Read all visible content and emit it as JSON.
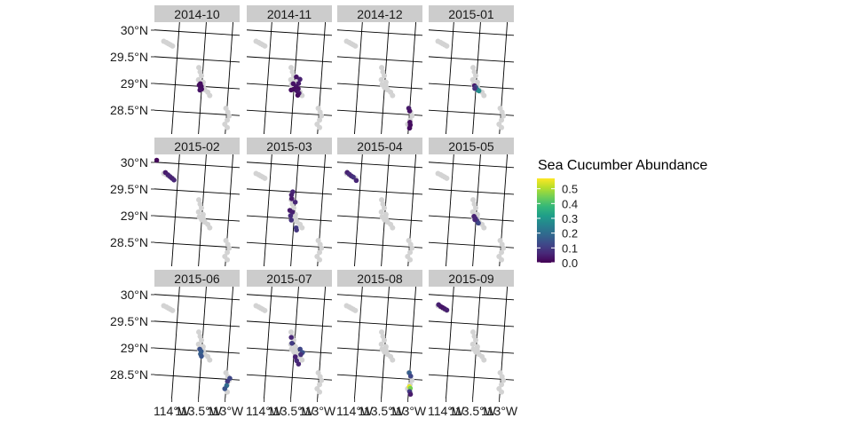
{
  "chart_data": {
    "type": "scatter",
    "subtype": "faceted map",
    "facets": [
      "2014-10",
      "2014-11",
      "2014-12",
      "2015-01",
      "2015-02",
      "2015-03",
      "2015-04",
      "2015-05",
      "2015-06",
      "2015-07",
      "2015-08",
      "2015-09"
    ],
    "facet_layout": {
      "rows": 3,
      "cols": 4
    },
    "y_axis": {
      "ticks": [
        30.0,
        29.5,
        29.0,
        28.5
      ],
      "tick_labels": [
        "30°N",
        "29.5°N",
        "29°N",
        "28.5°N"
      ],
      "range": [
        28.1,
        30.2
      ]
    },
    "x_axis": {
      "ticks": [
        -114.0,
        -113.5,
        -113.0
      ],
      "tick_labels": [
        "114°W",
        "113.5°W",
        "113°W"
      ],
      "range": [
        -114.4,
        -112.8
      ]
    },
    "legend": {
      "title": "Sea Cucumber Abundance",
      "ticks": [
        0.0,
        0.1,
        0.2,
        0.3,
        0.4,
        0.5
      ],
      "tick_labels": [
        "0.0",
        "0.1",
        "0.2",
        "0.3",
        "0.4",
        "0.5"
      ],
      "range": [
        0.0,
        0.57
      ],
      "colormap": "viridis",
      "position": "right"
    },
    "colors": {
      "background_points": "#d3d3d3",
      "strip_bg": "#cccccc",
      "viridis": [
        "#440154",
        "#482878",
        "#3e4989",
        "#31688e",
        "#26828e",
        "#1f9e89",
        "#35b779",
        "#6ece58",
        "#b5de2b",
        "#fde725"
      ]
    },
    "background_sites": [
      [
        -114.27,
        29.8
      ],
      [
        -114.22,
        29.78
      ],
      [
        -114.18,
        29.76
      ],
      [
        -114.14,
        29.74
      ],
      [
        -114.1,
        29.72
      ],
      [
        -113.58,
        29.35
      ],
      [
        -113.55,
        29.27
      ],
      [
        -113.52,
        29.2
      ],
      [
        -113.57,
        29.12
      ],
      [
        -113.48,
        29.08
      ],
      [
        -113.55,
        29.03
      ],
      [
        -113.5,
        28.98
      ],
      [
        -113.44,
        28.94
      ],
      [
        -113.38,
        28.9
      ],
      [
        -113.34,
        28.84
      ],
      [
        -113.48,
        29.02
      ],
      [
        -113.46,
        28.97
      ],
      [
        -113.02,
        28.62
      ],
      [
        -112.98,
        28.55
      ],
      [
        -112.95,
        28.48
      ],
      [
        -112.98,
        28.4
      ],
      [
        -113.02,
        28.32
      ],
      [
        -112.97,
        28.26
      ]
    ],
    "observations": [
      {
        "facet": "2014-10",
        "points": [
          [
            -113.53,
            29.05,
            0.02
          ],
          [
            -113.51,
            29.0,
            0.02
          ],
          [
            -113.52,
            28.97,
            0.03
          ],
          [
            -113.5,
            28.95,
            0.02
          ],
          [
            -113.55,
            29.02,
            0.02
          ],
          [
            -113.53,
            28.93,
            0.03
          ]
        ]
      },
      {
        "facet": "2014-11",
        "points": [
          [
            -113.47,
            29.18,
            0.03
          ],
          [
            -113.4,
            29.14,
            0.05
          ],
          [
            -113.42,
            29.06,
            0.04
          ],
          [
            -113.52,
            29.05,
            0.03
          ],
          [
            -113.46,
            29.0,
            0.03
          ],
          [
            -113.42,
            28.96,
            0.02
          ],
          [
            -113.5,
            28.95,
            0.02
          ],
          [
            -113.44,
            28.92,
            0.03
          ],
          [
            -113.4,
            28.88,
            0.04
          ],
          [
            -113.55,
            28.93,
            0.02
          ],
          [
            -113.42,
            28.84,
            0.02
          ]
        ]
      },
      {
        "facet": "2014-12",
        "points": [
          [
            -113.02,
            28.62,
            0.04
          ],
          [
            -113.0,
            28.57,
            0.03
          ],
          [
            -112.98,
            28.36,
            0.02
          ],
          [
            -112.97,
            28.31,
            0.02
          ],
          [
            -112.98,
            28.25,
            0.02
          ]
        ]
      },
      {
        "facet": "2015-01",
        "points": [
          [
            -113.53,
            29.01,
            0.04
          ],
          [
            -113.5,
            28.98,
            0.15
          ],
          [
            -113.47,
            28.94,
            0.25
          ],
          [
            -113.44,
            28.92,
            0.28
          ],
          [
            -113.52,
            28.96,
            0.08
          ]
        ]
      },
      {
        "facet": "2015-02",
        "points": [
          [
            -114.42,
            30.04,
            0.01
          ],
          [
            -114.24,
            29.82,
            0.04
          ],
          [
            -114.19,
            29.78,
            0.05
          ],
          [
            -114.15,
            29.75,
            0.06
          ],
          [
            -114.11,
            29.72,
            0.05
          ],
          [
            -114.07,
            29.69,
            0.06
          ]
        ]
      },
      {
        "facet": "2015-03",
        "points": [
          [
            -113.56,
            29.5,
            0.06
          ],
          [
            -113.58,
            29.44,
            0.05
          ],
          [
            -113.57,
            29.37,
            0.04
          ],
          [
            -113.5,
            29.31,
            0.06
          ],
          [
            -113.59,
            29.15,
            0.04
          ],
          [
            -113.54,
            29.12,
            0.05
          ],
          [
            -113.57,
            29.05,
            0.07
          ],
          [
            -113.55,
            28.97,
            0.08
          ],
          [
            -113.45,
            28.83,
            0.1
          ],
          [
            -113.44,
            28.79,
            0.09
          ]
        ]
      },
      {
        "facet": "2015-04",
        "points": [
          [
            -114.26,
            29.82,
            0.05
          ],
          [
            -114.22,
            29.79,
            0.07
          ],
          [
            -114.18,
            29.76,
            0.06
          ],
          [
            -114.14,
            29.74,
            0.08
          ],
          [
            -114.08,
            29.68,
            0.06
          ]
        ]
      },
      {
        "facet": "2015-05",
        "points": [
          [
            -113.54,
            29.04,
            0.05
          ],
          [
            -113.51,
            29.0,
            0.07
          ],
          [
            -113.48,
            28.96,
            0.1
          ],
          [
            -113.45,
            28.92,
            0.12
          ],
          [
            -113.52,
            28.98,
            0.06
          ]
        ]
      },
      {
        "facet": "2015-06",
        "points": [
          [
            -113.54,
            29.03,
            0.14
          ],
          [
            -113.51,
            28.99,
            0.16
          ],
          [
            -113.52,
            28.94,
            0.17
          ],
          [
            -113.5,
            28.9,
            0.15
          ],
          [
            -112.94,
            28.52,
            0.12
          ],
          [
            -112.98,
            28.46,
            0.1
          ],
          [
            -112.99,
            28.38,
            0.2
          ],
          [
            -113.02,
            28.32,
            0.15
          ]
        ]
      },
      {
        "facet": "2015-07",
        "points": [
          [
            -113.57,
            29.25,
            0.06
          ],
          [
            -113.55,
            29.14,
            0.1
          ],
          [
            -113.39,
            29.04,
            0.12
          ],
          [
            -113.34,
            28.98,
            0.14
          ],
          [
            -113.37,
            28.94,
            0.08
          ],
          [
            -113.44,
            28.82,
            0.07
          ],
          [
            -113.4,
            28.76,
            0.06
          ],
          [
            -113.47,
            28.89,
            0.05
          ]
        ]
      },
      {
        "facet": "2015-08",
        "points": [
          [
            -113.01,
            28.62,
            0.17
          ],
          [
            -112.98,
            28.56,
            0.12
          ],
          [
            -112.99,
            28.36,
            0.55
          ],
          [
            -112.97,
            28.33,
            0.45
          ],
          [
            -112.98,
            28.27,
            0.1
          ],
          [
            -112.96,
            28.22,
            0.04
          ]
        ]
      },
      {
        "facet": "2015-09",
        "points": [
          [
            -114.26,
            29.82,
            0.05
          ],
          [
            -114.22,
            29.79,
            0.04
          ],
          [
            -114.18,
            29.77,
            0.03
          ],
          [
            -114.14,
            29.75,
            0.04
          ],
          [
            -114.1,
            29.73,
            0.05
          ]
        ]
      }
    ]
  }
}
